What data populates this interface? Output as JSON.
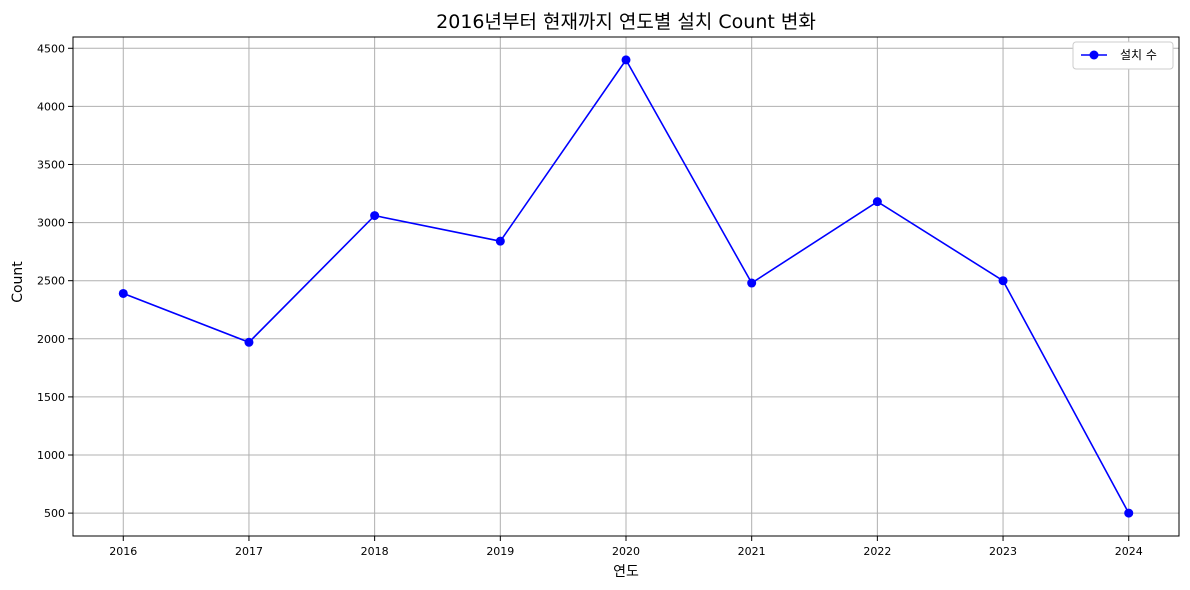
{
  "chart_data": {
    "type": "line",
    "title": "2016년부터 현재까지 연도별 설치 Count 변화",
    "xlabel": "연도",
    "ylabel": "Count",
    "categories": [
      "2016",
      "2017",
      "2018",
      "2019",
      "2020",
      "2021",
      "2022",
      "2023",
      "2024"
    ],
    "series": [
      {
        "name": "설치 수",
        "values": [
          2390,
          1970,
          3060,
          2840,
          4400,
          2480,
          3180,
          2500,
          500
        ],
        "color": "#0000ff",
        "marker": "circle"
      }
    ],
    "yticks": [
      500,
      1000,
      1500,
      2000,
      2500,
      3000,
      3500,
      4000,
      4500
    ],
    "ylim": [
      303,
      4597
    ],
    "grid": true,
    "legend_position": "top-right"
  }
}
